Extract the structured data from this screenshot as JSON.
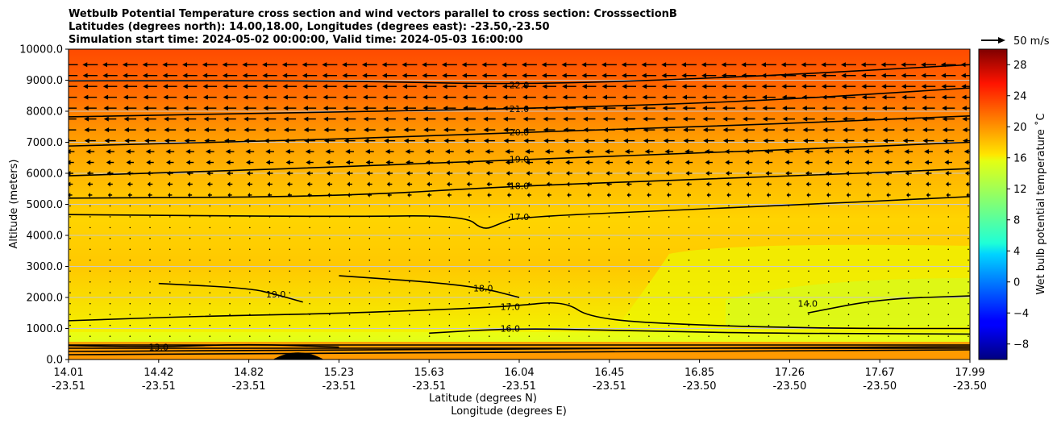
{
  "chart_data": {
    "type": "contour-cross-section",
    "title_lines": [
      "Wetbulb Potential Temperature cross section and wind vectors parallel to cross section: CrosssectionB",
      "Latitudes (degrees north): 14.00,18.00, Longitudes (degrees east): -23.50,-23.50",
      "Simulation start time: 2024-05-02 00:00:00, Valid time: 2024-05-03 16:00:00"
    ],
    "xlabel_lat": "Latitude (degrees N)",
    "xlabel_lon": "Longitude (degrees E)",
    "ylabel": "Altitude (meters)",
    "ylim": [
      0,
      10000
    ],
    "x_ticks_lat": [
      "14.01",
      "14.42",
      "14.82",
      "15.23",
      "15.63",
      "16.04",
      "16.45",
      "16.85",
      "17.26",
      "17.67",
      "17.99"
    ],
    "x_ticks_lon": [
      "-23.51",
      "-23.51",
      "-23.51",
      "-23.51",
      "-23.51",
      "-23.51",
      "-23.51",
      "-23.50",
      "-23.50",
      "-23.50",
      "-23.50"
    ],
    "y_ticks": [
      "0.0",
      "1000.0",
      "2000.0",
      "3000.0",
      "4000.0",
      "5000.0",
      "6000.0",
      "7000.0",
      "8000.0",
      "9000.0",
      "10000.0"
    ],
    "y_tick_values": [
      0,
      1000,
      2000,
      3000,
      4000,
      5000,
      6000,
      7000,
      8000,
      9000,
      10000
    ],
    "colorbar": {
      "label": "Wet bulb potential temperature $^\\circ$C",
      "label_display": "Wet bulb potential temperature ˚C",
      "range": [
        -10,
        30
      ],
      "ticks": [
        "−8",
        "−4",
        "0",
        "4",
        "8",
        "12",
        "16",
        "20",
        "24",
        "28"
      ],
      "tick_values": [
        -8,
        -4,
        0,
        4,
        8,
        12,
        16,
        20,
        24,
        28
      ],
      "colormap": "jet"
    },
    "quiver_key": "50 m/s",
    "contours": [
      {
        "level": 22.0,
        "label": "22.0",
        "x": 0.5,
        "altitude": 8850,
        "points": [
          [
            0.0,
            8980
          ],
          [
            0.3,
            8990
          ],
          [
            0.5,
            8850
          ],
          [
            0.75,
            9100
          ],
          [
            1.0,
            9500
          ]
        ]
      },
      {
        "level": 21.0,
        "label": "21.0",
        "x": 0.5,
        "altitude": 8080,
        "points": [
          [
            0.0,
            7820
          ],
          [
            0.3,
            7980
          ],
          [
            0.5,
            8080
          ],
          [
            0.75,
            8300
          ],
          [
            1.0,
            8750
          ]
        ]
      },
      {
        "level": 20.0,
        "label": "20.0",
        "x": 0.5,
        "altitude": 7320,
        "points": [
          [
            0.0,
            6880
          ],
          [
            0.3,
            7100
          ],
          [
            0.5,
            7320
          ],
          [
            0.75,
            7550
          ],
          [
            1.0,
            7850
          ]
        ]
      },
      {
        "level": 19.0,
        "label": "19.0",
        "x": 0.5,
        "altitude": 6450,
        "points": [
          [
            0.0,
            5920
          ],
          [
            0.3,
            6200
          ],
          [
            0.5,
            6450
          ],
          [
            0.75,
            6700
          ],
          [
            1.0,
            7000
          ]
        ]
      },
      {
        "level": 18.0,
        "label": "18.0",
        "x": 0.5,
        "altitude": 5600,
        "points": [
          [
            0.0,
            5200
          ],
          [
            0.3,
            5250
          ],
          [
            0.5,
            5600
          ],
          [
            0.75,
            5850
          ],
          [
            1.0,
            6150
          ]
        ]
      },
      {
        "level": 17.0,
        "label": "17.0",
        "x": 0.5,
        "altitude": 4600,
        "points": [
          [
            0.0,
            4670
          ],
          [
            0.3,
            4600
          ],
          [
            0.44,
            4650
          ],
          [
            0.46,
            4150
          ],
          [
            0.48,
            4400
          ],
          [
            0.5,
            4600
          ],
          [
            0.75,
            4900
          ],
          [
            1.0,
            5250
          ]
        ]
      },
      {
        "level": 17.0,
        "label": "17.0",
        "x": 0.49,
        "altitude": 1700,
        "points": [
          [
            0.0,
            1250
          ],
          [
            0.15,
            1400
          ],
          [
            0.3,
            1480
          ],
          [
            0.49,
            1700
          ],
          [
            0.55,
            1900
          ],
          [
            0.58,
            1300
          ],
          [
            0.7,
            1100
          ],
          [
            0.85,
            1000
          ],
          [
            1.0,
            1000
          ]
        ]
      },
      {
        "level": 16.0,
        "label": "16.0",
        "x": 0.49,
        "altitude": 1000,
        "points": [
          [
            0.4,
            850
          ],
          [
            0.49,
            1000
          ],
          [
            0.6,
            950
          ],
          [
            0.75,
            850
          ],
          [
            1.0,
            820
          ]
        ]
      },
      {
        "level": 19.0,
        "label": "19.0",
        "x": 0.23,
        "altitude": 2100,
        "points": [
          [
            0.1,
            2450
          ],
          [
            0.2,
            2300
          ],
          [
            0.23,
            2100
          ],
          [
            0.26,
            1850
          ]
        ]
      },
      {
        "level": 18.0,
        "label": "18.0",
        "x": 0.46,
        "altitude": 2300,
        "points": [
          [
            0.3,
            2700
          ],
          [
            0.4,
            2500
          ],
          [
            0.46,
            2300
          ],
          [
            0.5,
            2000
          ]
        ]
      },
      {
        "level": 14.0,
        "label": "14.0",
        "x": 0.82,
        "altitude": 1800,
        "points": [
          [
            0.82,
            1500
          ],
          [
            0.9,
            1950
          ],
          [
            1.0,
            2050
          ]
        ]
      },
      {
        "level": 13.0,
        "label": "13.0",
        "x": 0.1,
        "altitude": 400,
        "points": [
          [
            0.0,
            450
          ],
          [
            0.1,
            400
          ],
          [
            0.2,
            500
          ],
          [
            0.3,
            400
          ]
        ]
      }
    ]
  }
}
